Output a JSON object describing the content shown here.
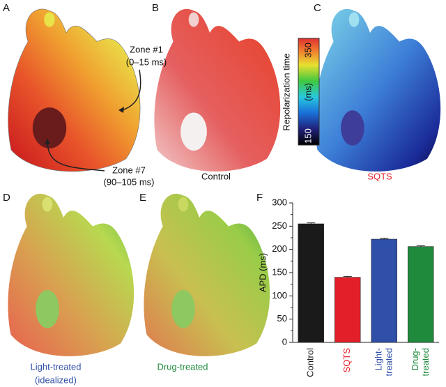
{
  "panels": [
    "A",
    "B",
    "C",
    "D",
    "E",
    "F"
  ],
  "annotations": {
    "zone1": [
      "Zone #1",
      "(0–15 ms)"
    ],
    "zone7": [
      "Zone #7",
      "(90–105 ms)"
    ]
  },
  "captions": {
    "control": "Control",
    "sqts": "SQTS",
    "light": [
      "Light-treated",
      "(idealized)"
    ],
    "drug": "Drug-treated"
  },
  "colorbar": {
    "label": "Repolarization time",
    "unit": "(ms)",
    "max": 350,
    "min": 150
  },
  "chart_data": {
    "type": "bar",
    "ylabel": "APD (ms)",
    "categories": [
      "Control",
      "SQTS",
      "Light-treated",
      "Drug-treated"
    ],
    "values": [
      255,
      140,
      222,
      206
    ],
    "errors": [
      2,
      2,
      2,
      2
    ],
    "colors": [
      "#1a1a1a",
      "#e3202a",
      "#2f4fa8",
      "#1f8a3c"
    ],
    "ylim": [
      0,
      300
    ],
    "yticks": [
      0,
      25,
      50,
      75,
      100,
      125,
      150,
      175,
      200,
      225,
      250,
      275,
      300
    ],
    "grid": false
  }
}
